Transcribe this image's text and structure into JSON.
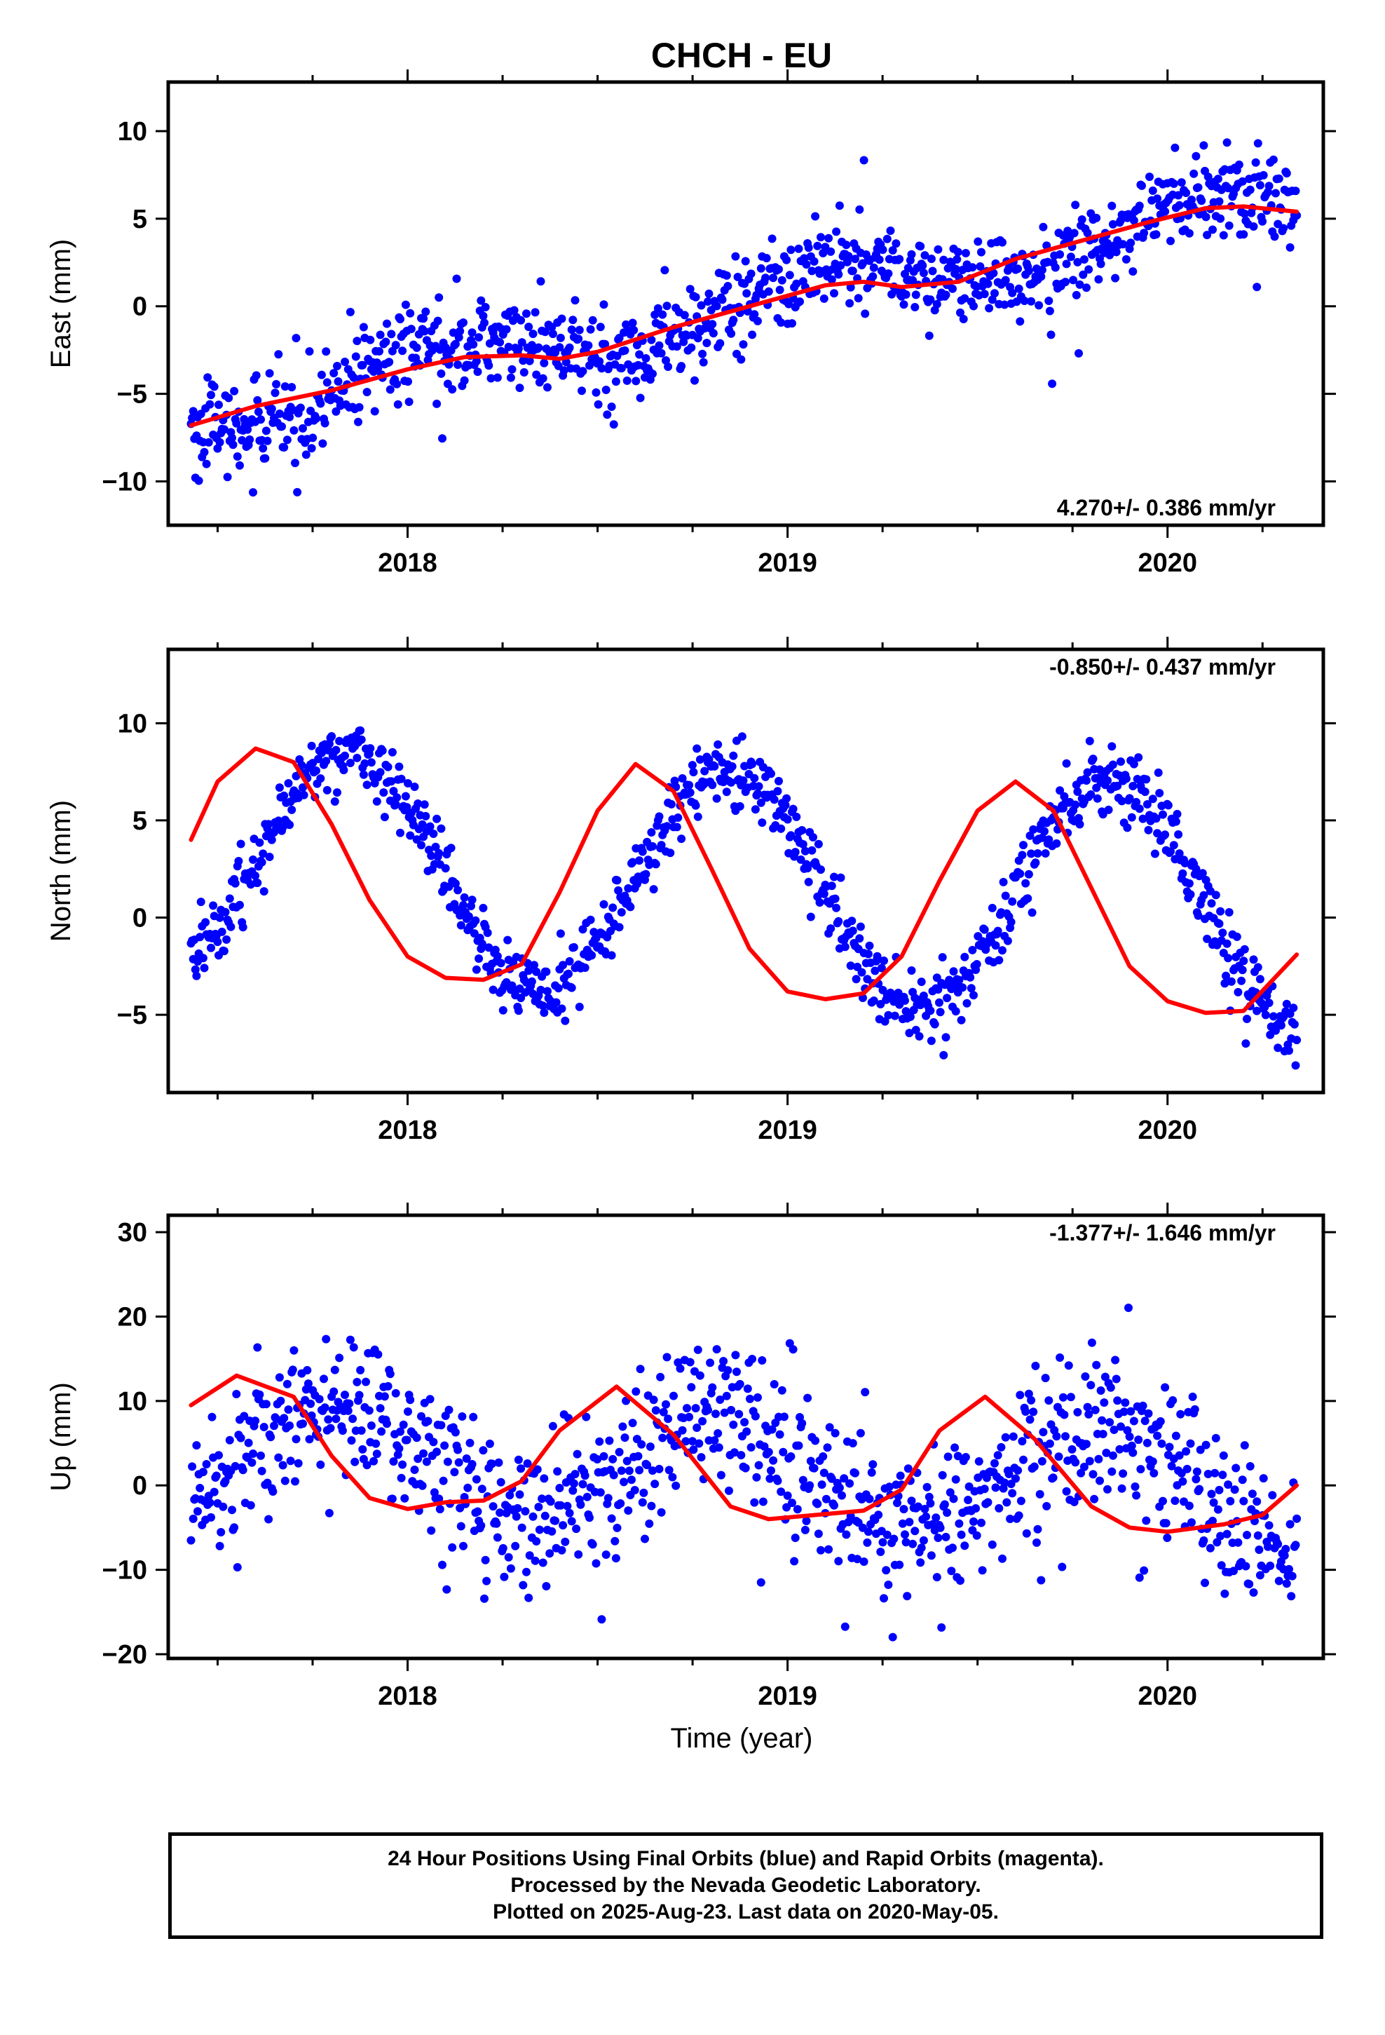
{
  "title": "CHCH - EU",
  "x_label": "Time (year)",
  "footer": {
    "line1": "24 Hour Positions Using Final Orbits (blue) and Rapid Orbits (magenta).",
    "line2": "Processed by the Nevada Geodetic Laboratory.",
    "line3": "Plotted on 2025-Aug-23. Last data on 2020-May-05."
  },
  "colors": {
    "points": "#0000ff",
    "fit": "#ff0000",
    "axes": "#000000"
  },
  "chart_data": [
    {
      "type": "scatter",
      "name": "east",
      "ylabel": "East (mm)",
      "xlim": [
        2017.37,
        2020.41
      ],
      "ylim": [
        -12.5,
        12.8
      ],
      "yticks": [
        -10,
        -5,
        0,
        5,
        10
      ],
      "xticks": [
        2018,
        2019,
        2020
      ],
      "rate_label": "4.270+/- 0.386 mm/yr",
      "rate_position": "bottom-right",
      "points": {
        "trend": 4.27,
        "t0": 2019.0,
        "offset": 0.4,
        "x_range": [
          2017.43,
          2020.34
        ],
        "n": 1000,
        "noise_sd": 1.3,
        "seasonal": [
          {
            "amp": 1.3,
            "phase": 1.0
          }
        ]
      },
      "fit_curve": [
        [
          2017.43,
          -6.8
        ],
        [
          2017.6,
          -5.7
        ],
        [
          2017.8,
          -4.8
        ],
        [
          2018.0,
          -3.6
        ],
        [
          2018.15,
          -2.9
        ],
        [
          2018.3,
          -2.8
        ],
        [
          2018.4,
          -3.0
        ],
        [
          2018.5,
          -2.6
        ],
        [
          2018.7,
          -1.2
        ],
        [
          2018.9,
          0.0
        ],
        [
          2019.1,
          1.2
        ],
        [
          2019.2,
          1.4
        ],
        [
          2019.3,
          1.1
        ],
        [
          2019.45,
          1.4
        ],
        [
          2019.6,
          2.7
        ],
        [
          2019.8,
          3.9
        ],
        [
          2019.95,
          4.8
        ],
        [
          2020.1,
          5.6
        ],
        [
          2020.2,
          5.7
        ],
        [
          2020.34,
          5.4
        ]
      ]
    },
    {
      "type": "scatter",
      "name": "north",
      "ylabel": "North (mm)",
      "xlim": [
        2017.37,
        2020.41
      ],
      "ylim": [
        -9.0,
        13.8
      ],
      "yticks": [
        -5,
        0,
        5,
        10
      ],
      "xticks": [
        2018,
        2019,
        2020
      ],
      "rate_label": "-0.850+/- 0.437 mm/yr",
      "rate_position": "top-right",
      "points": {
        "trend": -0.85,
        "t0": 2019.0,
        "offset": 1.6,
        "x_range": [
          2017.43,
          2020.34
        ],
        "n": 1000,
        "noise_sd": 0.9,
        "seasonal": [
          {
            "amp": 6.0,
            "phase": 2.55
          }
        ]
      },
      "fit_curve": [
        [
          2017.43,
          4.0
        ],
        [
          2017.5,
          7.0
        ],
        [
          2017.6,
          8.7
        ],
        [
          2017.7,
          8.0
        ],
        [
          2017.8,
          4.8
        ],
        [
          2017.9,
          0.9
        ],
        [
          2018.0,
          -2.0
        ],
        [
          2018.1,
          -3.1
        ],
        [
          2018.2,
          -3.2
        ],
        [
          2018.3,
          -2.4
        ],
        [
          2018.4,
          1.3
        ],
        [
          2018.5,
          5.5
        ],
        [
          2018.6,
          7.9
        ],
        [
          2018.7,
          6.5
        ],
        [
          2018.8,
          2.5
        ],
        [
          2018.9,
          -1.6
        ],
        [
          2019.0,
          -3.8
        ],
        [
          2019.1,
          -4.2
        ],
        [
          2019.2,
          -3.9
        ],
        [
          2019.3,
          -2.0
        ],
        [
          2019.4,
          1.9
        ],
        [
          2019.5,
          5.5
        ],
        [
          2019.6,
          7.0
        ],
        [
          2019.7,
          5.5
        ],
        [
          2019.8,
          1.5
        ],
        [
          2019.9,
          -2.5
        ],
        [
          2020.0,
          -4.3
        ],
        [
          2020.1,
          -4.9
        ],
        [
          2020.2,
          -4.8
        ],
        [
          2020.34,
          -1.9
        ]
      ]
    },
    {
      "type": "scatter",
      "name": "up",
      "ylabel": "Up (mm)",
      "xlim": [
        2017.37,
        2020.41
      ],
      "ylim": [
        -20.5,
        32.0
      ],
      "yticks": [
        -20,
        -10,
        0,
        10,
        20,
        30
      ],
      "xticks": [
        2018,
        2019,
        2020
      ],
      "rate_label": "-1.377+/- 1.646 mm/yr",
      "rate_position": "top-right",
      "points": {
        "trend": -1.377,
        "t0": 2019.0,
        "offset": 1.5,
        "x_range": [
          2017.43,
          2020.34
        ],
        "n": 1000,
        "noise_sd": 4.5,
        "seasonal": [
          {
            "amp": 6.5,
            "phase": 2.7
          }
        ]
      },
      "fit_curve": [
        [
          2017.43,
          9.5
        ],
        [
          2017.55,
          13.0
        ],
        [
          2017.7,
          10.5
        ],
        [
          2017.8,
          3.5
        ],
        [
          2017.9,
          -1.5
        ],
        [
          2018.0,
          -2.8
        ],
        [
          2018.1,
          -2.0
        ],
        [
          2018.2,
          -1.8
        ],
        [
          2018.3,
          0.5
        ],
        [
          2018.4,
          6.5
        ],
        [
          2018.55,
          11.7
        ],
        [
          2018.7,
          6.0
        ],
        [
          2018.85,
          -2.5
        ],
        [
          2018.95,
          -4.0
        ],
        [
          2019.1,
          -3.4
        ],
        [
          2019.2,
          -3.0
        ],
        [
          2019.3,
          -0.5
        ],
        [
          2019.4,
          6.5
        ],
        [
          2019.52,
          10.5
        ],
        [
          2019.65,
          5.5
        ],
        [
          2019.8,
          -2.5
        ],
        [
          2019.9,
          -5.0
        ],
        [
          2020.0,
          -5.5
        ],
        [
          2020.15,
          -4.6
        ],
        [
          2020.25,
          -3.5
        ],
        [
          2020.34,
          0.0
        ]
      ]
    }
  ]
}
